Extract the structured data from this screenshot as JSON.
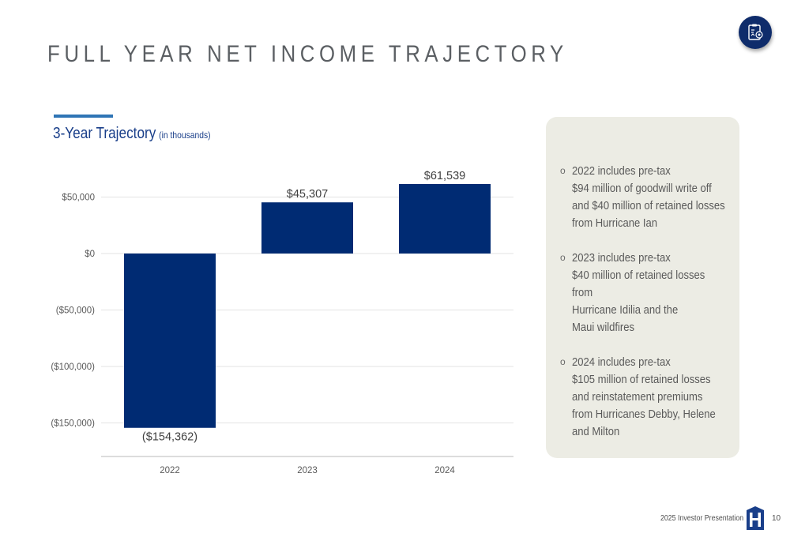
{
  "page": {
    "title": "FULL YEAR NET INCOME TRAJECTORY",
    "subtitle_main": "3-Year Trajectory",
    "subtitle_note": "(in thousands)",
    "footer": "2025 Investor Presentation",
    "page_number": "10",
    "badge_icon": "clipboard-target-icon",
    "logo_icon": "brand-h-logo-icon"
  },
  "colors": {
    "bar": "#002b73",
    "accent": "#2e74b5",
    "panel": "#ecece4",
    "title": "#5b5f63",
    "subtitle": "#1a3f8a"
  },
  "chart_data": {
    "type": "bar",
    "categories": [
      "2022",
      "2023",
      "2024"
    ],
    "values": [
      -154362,
      45307,
      61539
    ],
    "data_labels": [
      "($154,362)",
      "$45,307",
      "$61,539"
    ],
    "y_ticks": [
      50000,
      0,
      -50000,
      -100000,
      -150000
    ],
    "y_tick_labels": [
      "$50,000",
      "$0",
      "($50,000)",
      "($100,000)",
      "($150,000)"
    ],
    "ylim": [
      -180000,
      75000
    ],
    "grid": true,
    "legend": "none"
  },
  "notes": [
    {
      "text": "2022 includes pre-tax\n$94 million of goodwill write off\nand $40 million of retained losses\nfrom Hurricane Ian"
    },
    {
      "text": "2023 includes pre-tax\n$40 million of retained losses from\nHurricane Idilia and the\nMaui wildfires"
    },
    {
      "text": "2024 includes pre-tax\n$105 million of retained losses\nand reinstatement premiums\nfrom Hurricanes Debby, Helene\nand Milton"
    }
  ]
}
